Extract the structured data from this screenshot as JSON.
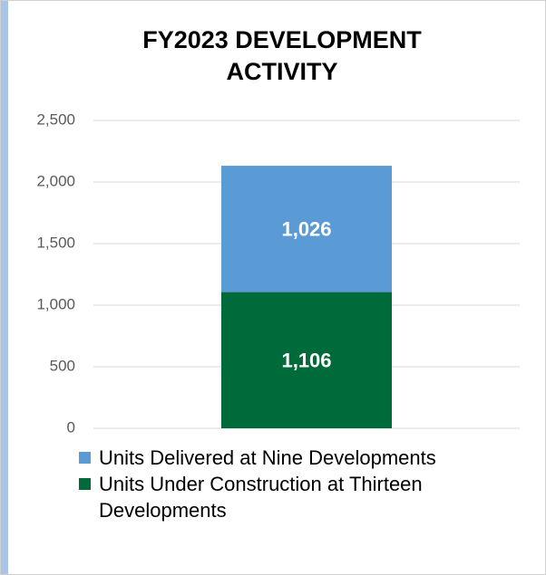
{
  "chart_data": {
    "type": "stacked_bar",
    "title": "FY2023 DEVELOPMENT ACTIVITY",
    "categories": [
      null
    ],
    "series": [
      {
        "name": "Units Delivered at Nine Developments",
        "color": "#5b9bd5",
        "values": [
          1026
        ],
        "value_labels": [
          "1,026"
        ]
      },
      {
        "name": "Units Under Construction at Thirteen Developments",
        "color": "#006b3a",
        "values": [
          1106
        ],
        "value_labels": [
          "1,106"
        ]
      }
    ],
    "ylim": [
      0,
      2500
    ],
    "yticks": [
      0,
      500,
      {
        "value": 1000,
        "label": "1,000"
      },
      {
        "value": 1500,
        "label": "1,500"
      },
      {
        "value": 2000,
        "label": "2,000"
      },
      {
        "value": 2500,
        "label": "2,500"
      }
    ],
    "grid": true,
    "legend": "bottom"
  }
}
